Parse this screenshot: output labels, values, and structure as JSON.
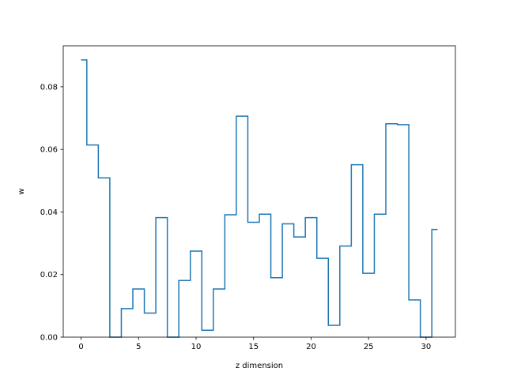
{
  "chart_data": {
    "type": "line",
    "drawstyle": "steps-mid",
    "xlabel": "z dimension",
    "ylabel": "w",
    "xlim": [
      -1.55,
      32.55
    ],
    "ylim": [
      0,
      0.0931
    ],
    "xticks": [
      0,
      5,
      10,
      15,
      20,
      25,
      30
    ],
    "yticks": [
      0.0,
      0.02,
      0.04,
      0.06,
      0.08
    ],
    "ytick_labels": [
      "0.00",
      "0.02",
      "0.04",
      "0.06",
      "0.08"
    ],
    "grid": false,
    "color": "#1f77b4",
    "x": [
      0,
      1,
      2,
      3,
      4,
      5,
      6,
      7,
      8,
      9,
      10,
      11,
      12,
      13,
      14,
      15,
      16,
      17,
      18,
      19,
      20,
      21,
      22,
      23,
      24,
      25,
      26,
      27,
      28,
      29,
      30,
      31
    ],
    "values": [
      0.0886,
      0.0614,
      0.0509,
      0.0,
      0.0091,
      0.0154,
      0.0077,
      0.0382,
      0.0,
      0.0181,
      0.0275,
      0.0022,
      0.0154,
      0.0391,
      0.0706,
      0.0367,
      0.0393,
      0.019,
      0.0362,
      0.032,
      0.0382,
      0.0252,
      0.0038,
      0.0291,
      0.0551,
      0.0204,
      0.0393,
      0.0682,
      0.0679,
      0.0119,
      0.0,
      0.0344
    ]
  }
}
